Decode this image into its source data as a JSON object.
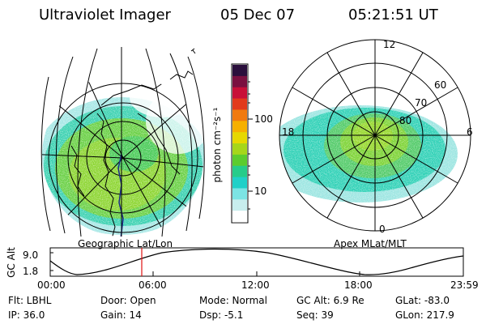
{
  "header": {
    "instrument": "Ultraviolet Imager",
    "date": "05 Dec 07",
    "time": "05:21:51 UT"
  },
  "left_panel": {
    "caption": "Geographic Lat/Lon"
  },
  "right_panel": {
    "caption": "Apex MLat/MLT",
    "mlt_labels": [
      "12",
      "18",
      "6",
      "0"
    ],
    "mlat_labels": [
      "60",
      "70",
      "80"
    ]
  },
  "colorbar": {
    "unit_label": "photon cm⁻²s⁻¹",
    "tick_labels": [
      "100",
      "10"
    ],
    "colors": [
      "#2a0f3c",
      "#7a1040",
      "#c81038",
      "#e23a1c",
      "#f07a10",
      "#f6b000",
      "#e6d800",
      "#a6d61a",
      "#5ccc2e",
      "#26cc8a",
      "#20d0c8",
      "#7ce4e4",
      "#c8eeee",
      "#ffffff"
    ]
  },
  "altitude_plot": {
    "ylabel": "GC Alt",
    "y_ticks": [
      "9.0",
      "1.8"
    ],
    "x_ticks": [
      "00:00",
      "06:00",
      "12:00",
      "18:00",
      "23:59"
    ],
    "marker_time": "05:21:51"
  },
  "info": {
    "filter": "Flt: LBHL",
    "ip": "IP: 36.0",
    "door": "Door: Open",
    "gain": "Gain: 14",
    "mode": "Mode: Normal",
    "dsp": "Dsp:    -5.1",
    "gc_alt": "GC Alt: 6.9 Re",
    "seq": "Seq: 39",
    "glat": "GLat: -83.0",
    "glon": "GLon: 217.9"
  }
}
